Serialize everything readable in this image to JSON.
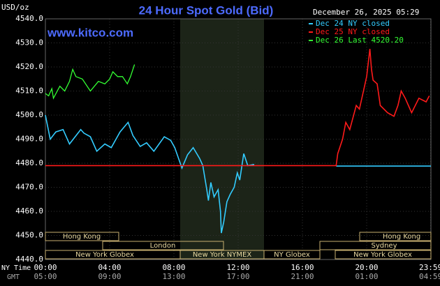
{
  "chart_data": {
    "type": "line",
    "title": "24 Hour Spot Gold (Bid)",
    "watermark": "www.kitco.com",
    "ylabel": "USD/oz",
    "timestamp": "December 26, 2025 05:29",
    "xlabel": "NY Time",
    "x2label": "GMT",
    "xlim": [
      0,
      24
    ],
    "ylim": [
      4440,
      4540
    ],
    "yticks": [
      {
        "value": 4440,
        "label": "4440.0"
      },
      {
        "value": 4450,
        "label": "4450.0"
      },
      {
        "value": 4460,
        "label": "4460.0"
      },
      {
        "value": 4470,
        "label": "4470.0"
      },
      {
        "value": 4480,
        "label": "4480.0"
      },
      {
        "value": 4490,
        "label": "4490.0"
      },
      {
        "value": 4500,
        "label": "4500.0"
      },
      {
        "value": 4510,
        "label": "4510.0"
      },
      {
        "value": 4520,
        "label": "4520.0"
      },
      {
        "value": 4530,
        "label": "4530.0"
      },
      {
        "value": 4540,
        "label": "4540.0"
      }
    ],
    "xticks": [
      {
        "value": 0,
        "label": "00:00"
      },
      {
        "value": 4,
        "label": "04:00"
      },
      {
        "value": 8,
        "label": "08:00"
      },
      {
        "value": 12,
        "label": "12:00"
      },
      {
        "value": 16,
        "label": "16:00"
      },
      {
        "value": 20,
        "label": "20:00"
      },
      {
        "value": 23.98,
        "label": "23:59"
      }
    ],
    "x2ticks": [
      {
        "value": 0,
        "label": "05:00"
      },
      {
        "value": 4,
        "label": "09:00"
      },
      {
        "value": 8,
        "label": "13:00"
      },
      {
        "value": 12,
        "label": "17:00"
      },
      {
        "value": 16,
        "label": "21:00"
      },
      {
        "value": 20,
        "label": "01:00"
      },
      {
        "value": 23.98,
        "label": "04:59"
      }
    ],
    "grid": true,
    "sessions": [
      "Hong Kong",
      "London",
      "New York Globex",
      "New York NYMEX",
      "NY Globex",
      "Sydney",
      "Hong Kong",
      "New York Globex"
    ],
    "series": [
      {
        "name": "Dec 24 NY closed",
        "color": "#33ccff",
        "x": [
          0,
          0.3,
          0.65,
          1.1,
          1.5,
          2.2,
          2.4,
          2.8,
          3.2,
          3.7,
          4.1,
          4.65,
          5.15,
          5.45,
          5.9,
          6.3,
          6.75,
          7.4,
          7.8,
          8.05,
          8.5,
          8.85,
          9.2,
          9.6,
          9.8,
          10.05,
          10.15,
          10.3,
          10.5,
          10.75,
          10.9,
          10.95,
          11.1,
          11.3,
          11.5,
          11.75,
          11.95,
          12.1,
          12.35,
          12.6,
          13.0,
          15,
          18.1,
          24
        ],
        "values": [
          4500,
          4490,
          4493,
          4494,
          4488,
          4494,
          4492.5,
          4491,
          4485,
          4488,
          4486.5,
          4493,
          4497,
          4491.5,
          4487,
          4488.5,
          4485,
          4491,
          4489.5,
          4486.5,
          4478,
          4483.5,
          4486.5,
          4482,
          4479,
          4469,
          4464.5,
          4472,
          4466,
          4469,
          4460,
          4451,
          4455.5,
          4464,
          4467,
          4470,
          4476,
          4473,
          4484,
          4479,
          4479.5,
          null,
          4478.8,
          4478.8
        ]
      },
      {
        "name": "Dec 25 NY closed",
        "color": "#ff1a1a",
        "x": [
          0,
          18.1,
          18.2,
          18.5,
          18.7,
          18.95,
          19.35,
          19.55,
          19.8,
          20.0,
          20.2,
          20.3,
          20.4,
          20.65,
          20.85,
          21.3,
          21.7,
          21.95,
          22.15,
          22.4,
          22.8,
          23.25,
          23.7,
          23.9
        ],
        "values": [
          4479,
          4479,
          4484,
          4490,
          4497,
          4494,
          4504,
          4502.5,
          4510,
          4516,
          4527.5,
          4519,
          4514.5,
          4513,
          4504,
          4501,
          4499.5,
          4504,
          4510,
          4507,
          4501,
          4507,
          4505.5,
          4508
        ]
      },
      {
        "name": "Dec 26 Last 4520.20",
        "color": "#33ff33",
        "x": [
          0,
          0.2,
          0.4,
          0.5,
          0.9,
          1.2,
          1.5,
          1.7,
          1.9,
          2.3,
          2.8,
          3.3,
          3.7,
          4.0,
          4.2,
          4.5,
          4.8,
          5.1,
          5.3,
          5.55
        ],
        "values": [
          4509,
          4508,
          4511,
          4507,
          4512,
          4510,
          4514,
          4519,
          4516,
          4515,
          4510,
          4514,
          4513,
          4515,
          4518,
          4516,
          4516,
          4513,
          4516,
          4521
        ]
      }
    ]
  }
}
